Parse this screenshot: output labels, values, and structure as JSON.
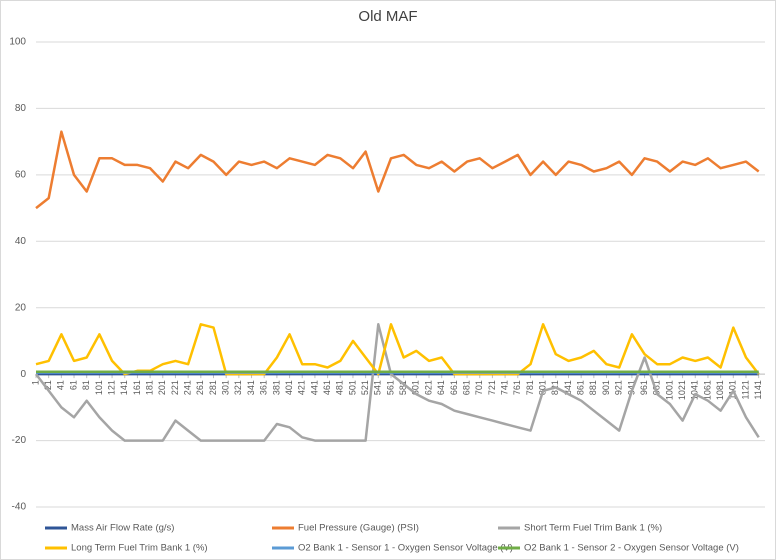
{
  "chart_data": {
    "type": "line",
    "title": "Old MAF",
    "x": [
      1,
      21,
      41,
      61,
      81,
      101,
      121,
      141,
      161,
      181,
      201,
      221,
      241,
      261,
      281,
      301,
      321,
      341,
      361,
      381,
      401,
      421,
      441,
      461,
      481,
      501,
      521,
      541,
      561,
      581,
      601,
      621,
      641,
      661,
      681,
      701,
      721,
      741,
      761,
      781,
      801,
      821,
      841,
      861,
      881,
      901,
      921,
      941,
      961,
      981,
      1001,
      1021,
      1041,
      1061,
      1081,
      1101,
      1121,
      1141
    ],
    "xlim": [
      1,
      1151
    ],
    "xticks": [
      1,
      21,
      41,
      61,
      81,
      101,
      121,
      141,
      161,
      181,
      201,
      221,
      241,
      261,
      281,
      301,
      321,
      341,
      361,
      381,
      401,
      421,
      441,
      461,
      481,
      501,
      521,
      541,
      561,
      581,
      601,
      621,
      641,
      661,
      681,
      701,
      721,
      741,
      761,
      781,
      801,
      821,
      841,
      861,
      881,
      901,
      921,
      941,
      961,
      981,
      1001,
      1021,
      1041,
      1061,
      1081,
      1101,
      1121,
      1141
    ],
    "ylim": [
      -40,
      100
    ],
    "yticks": [
      -40,
      -20,
      0,
      20,
      40,
      60,
      80,
      100
    ],
    "grid": true,
    "legend": "bottom",
    "series": [
      {
        "name": "Mass Air Flow Rate (g/s)",
        "color": "#2f5597",
        "values": [
          0,
          0,
          0,
          0,
          0,
          0,
          0,
          0,
          0,
          0,
          0,
          0,
          0,
          0,
          0,
          0,
          0,
          0,
          0,
          0,
          0,
          0,
          0,
          0,
          0,
          0,
          0,
          0,
          0,
          0,
          0,
          0,
          0,
          0,
          0,
          0,
          0,
          0,
          0,
          0,
          0,
          0,
          0,
          0,
          0,
          0,
          0,
          0,
          0,
          0,
          0,
          0,
          0,
          0,
          0,
          0,
          0,
          0
        ]
      },
      {
        "name": "Fuel Pressure (Gauge) (PSI)",
        "color": "#ed7d31",
        "values": [
          50,
          53,
          73,
          60,
          55,
          65,
          65,
          63,
          63,
          62,
          58,
          64,
          62,
          66,
          64,
          60,
          64,
          63,
          64,
          62,
          65,
          64,
          63,
          66,
          65,
          62,
          67,
          55,
          65,
          66,
          63,
          62,
          64,
          61,
          64,
          65,
          62,
          64,
          66,
          60,
          64,
          60,
          64,
          63,
          61,
          62,
          64,
          60,
          65,
          64,
          61,
          64,
          63,
          65,
          62,
          63,
          64,
          61
        ]
      },
      {
        "name": "Short Term Fuel Trim Bank 1 (%)",
        "color": "#a5a5a5",
        "values": [
          0,
          -5,
          -10,
          -13,
          -8,
          -13,
          -17,
          -20,
          -20,
          -20,
          -20,
          -14,
          -17,
          -20,
          -20,
          -20,
          -20,
          -20,
          -20,
          -15,
          -16,
          -19,
          -20,
          -20,
          -20,
          -20,
          -20,
          15,
          0,
          -3,
          -6,
          -8,
          -9,
          -11,
          -12,
          -13,
          -14,
          -15,
          -16,
          -17,
          -5,
          -4,
          -6,
          -8,
          -11,
          -14,
          -17,
          -5,
          5,
          -6,
          -9,
          -14,
          -6,
          -8,
          -11,
          -5,
          -13,
          -19
        ]
      },
      {
        "name": "Long Term Fuel Trim Bank 1 (%)",
        "color": "#ffc000",
        "values": [
          3,
          4,
          12,
          4,
          5,
          12,
          4,
          0,
          1,
          1,
          3,
          4,
          3,
          15,
          14,
          0,
          0,
          0,
          0,
          5,
          12,
          3,
          3,
          2,
          4,
          10,
          5,
          0,
          15,
          5,
          7,
          4,
          5,
          0,
          0,
          0,
          0,
          0,
          0,
          3,
          15,
          6,
          4,
          5,
          7,
          3,
          2,
          12,
          6,
          3,
          3,
          5,
          4,
          5,
          2,
          14,
          5,
          0
        ]
      },
      {
        "name": "O2 Bank 1 - Sensor 1 - Oxygen Sensor Voltage (V)",
        "color": "#5b9bd5",
        "values": [
          0.5,
          0.5,
          0.5,
          0.5,
          0.5,
          0.5,
          0.5,
          0.5,
          0.5,
          0.5,
          0.5,
          0.5,
          0.5,
          0.5,
          0.5,
          0.5,
          0.5,
          0.5,
          0.5,
          0.5,
          0.5,
          0.5,
          0.5,
          0.5,
          0.5,
          0.5,
          0.5,
          0.5,
          0.5,
          0.5,
          0.5,
          0.5,
          0.5,
          0.5,
          0.5,
          0.5,
          0.5,
          0.5,
          0.5,
          0.5,
          0.5,
          0.5,
          0.5,
          0.5,
          0.5,
          0.5,
          0.5,
          0.5,
          0.5,
          0.5,
          0.5,
          0.5,
          0.5,
          0.5,
          0.5,
          0.5,
          0.5,
          0.5
        ]
      },
      {
        "name": "O2 Bank 1 - Sensor 2 - Oxygen Sensor Voltage (V)",
        "color": "#70ad47",
        "values": [
          0.7,
          0.7,
          0.7,
          0.7,
          0.7,
          0.7,
          0.7,
          0.7,
          0.7,
          0.7,
          0.7,
          0.7,
          0.7,
          0.7,
          0.7,
          0.7,
          0.7,
          0.7,
          0.7,
          0.7,
          0.7,
          0.7,
          0.7,
          0.7,
          0.7,
          0.7,
          0.7,
          0.7,
          0.7,
          0.7,
          0.7,
          0.7,
          0.7,
          0.7,
          0.7,
          0.7,
          0.7,
          0.7,
          0.7,
          0.7,
          0.7,
          0.7,
          0.7,
          0.7,
          0.7,
          0.7,
          0.7,
          0.7,
          0.7,
          0.7,
          0.7,
          0.7,
          0.7,
          0.7,
          0.7,
          0.7,
          0.7,
          0.7
        ]
      }
    ]
  }
}
